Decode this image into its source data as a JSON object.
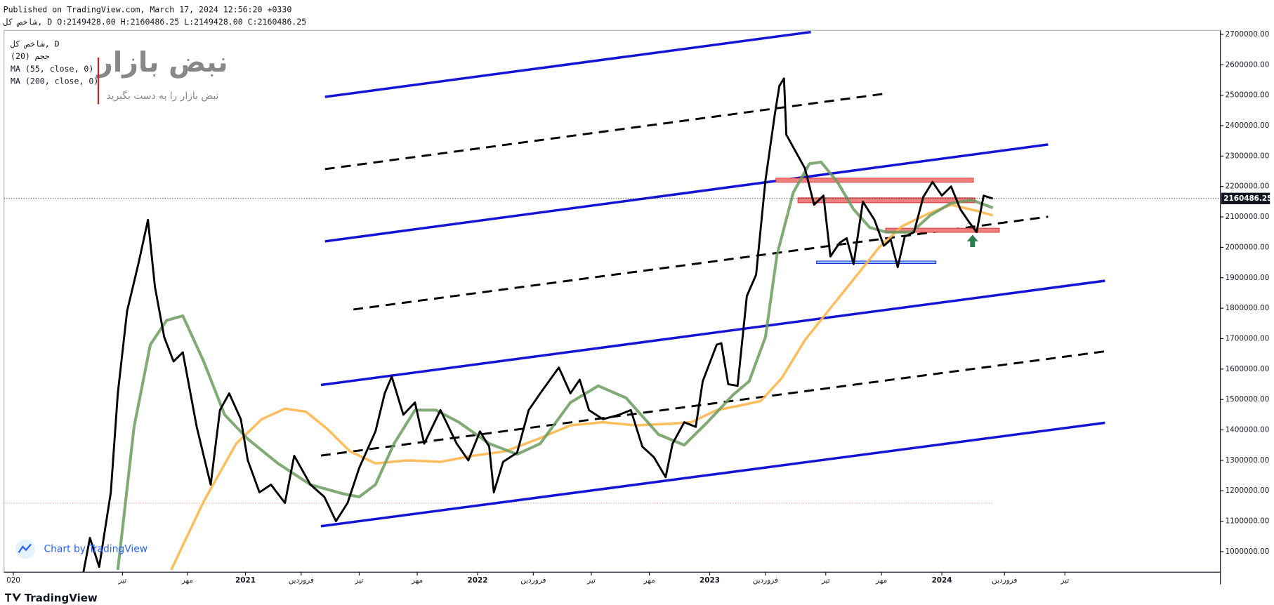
{
  "chart_data": {
    "type": "line",
    "published": "Published on TradingView.com, March 17, 2024 12:56:20 +0330",
    "ohlc_line": "شاخص کل, D O:2149428.00 H:2160486.25 L:2149428.00 C:2160486.25",
    "indicators": [
      "حجم (20)"
    ],
    "watermark": "نبض بازار",
    "watermark_slogan": "نبض بازار را به دست بگیرید",
    "credit": "Chart by TradingView",
    "brand": "TradingView",
    "last_price": {
      "value": 2160486.25,
      "label": "2160486.25"
    },
    "xlim": [
      2019.96,
      2025.2
    ],
    "ylim": [
      932500,
      2713000
    ],
    "xticks": [
      {
        "value": 2020.0,
        "label": "020"
      },
      {
        "value": 2020.47,
        "label": "تیر"
      },
      {
        "value": 2020.75,
        "label": "مهر"
      },
      2021,
      {
        "value": 2021.24,
        "label": "فروردین"
      },
      {
        "value": 2021.49,
        "label": "تیر"
      },
      {
        "value": 2021.74,
        "label": "مهر"
      },
      2022,
      {
        "value": 2022.24,
        "label": "فروردین"
      },
      {
        "value": 2022.49,
        "label": "تیر"
      },
      {
        "value": 2022.74,
        "label": "مهر"
      },
      2023,
      {
        "value": 2023.24,
        "label": "فروردین"
      },
      {
        "value": 2023.5,
        "label": "تیر"
      },
      {
        "value": 2023.74,
        "label": "مهر"
      },
      2024,
      {
        "value": 2024.27,
        "label": "فروردین"
      },
      {
        "value": 2024.53,
        "label": "تیر"
      }
    ],
    "yticks": [
      {
        "value": 1000000,
        "label": "1000000.00"
      },
      {
        "value": 1100000,
        "label": "1100000.00"
      },
      {
        "value": 1200000,
        "label": "1200000.00"
      },
      {
        "value": 1300000,
        "label": "1300000.00"
      },
      {
        "value": 1400000,
        "label": "1400000.00"
      },
      {
        "value": 1500000,
        "label": "1500000.00"
      },
      {
        "value": 1600000,
        "label": "1600000.00"
      },
      {
        "value": 1700000,
        "label": "1700000.00"
      },
      {
        "value": 1800000,
        "label": "1800000.00"
      },
      {
        "value": 1900000,
        "label": "1900000.00"
      },
      {
        "value": 2000000,
        "label": "2000000.00"
      },
      {
        "value": 2100000,
        "label": "2100000.00"
      },
      {
        "value": 2200000,
        "label": "2200000.00"
      },
      {
        "value": 2300000,
        "label": "2300000.00"
      },
      {
        "value": 2400000,
        "label": "2400000.00"
      },
      {
        "value": 2500000,
        "label": "2500000.00"
      },
      {
        "value": 2600000,
        "label": "2600000.00"
      },
      {
        "value": 2700000,
        "label": "2700000.00"
      }
    ],
    "series": [
      {
        "name": "شاخص کل, D",
        "color": "#000000",
        "x": [
          2020.3,
          2020.33,
          2020.37,
          2020.42,
          2020.45,
          2020.49,
          2020.54,
          2020.58,
          2020.61,
          2020.65,
          2020.69,
          2020.73,
          2020.79,
          2020.85,
          2020.89,
          2020.93,
          2020.98,
          2021.01,
          2021.06,
          2021.11,
          2021.17,
          2021.21,
          2021.28,
          2021.34,
          2021.39,
          2021.44,
          2021.49,
          2021.56,
          2021.6,
          2021.63,
          2021.68,
          2021.73,
          2021.77,
          2021.84,
          2021.91,
          2021.96,
          2022.01,
          2022.05,
          2022.07,
          2022.11,
          2022.17,
          2022.22,
          2022.27,
          2022.35,
          2022.4,
          2022.44,
          2022.48,
          2022.54,
          2022.61,
          2022.66,
          2022.71,
          2022.76,
          2022.81,
          2022.84,
          2022.89,
          2022.94,
          2022.97,
          2023.03,
          2023.05,
          2023.08,
          2023.12,
          2023.16,
          2023.2,
          2023.24,
          2023.28,
          2023.3,
          2023.32,
          2023.33,
          2023.37,
          2023.41,
          2023.45,
          2023.49,
          2023.52,
          2023.56,
          2023.59,
          2023.62,
          2023.66,
          2023.71,
          2023.75,
          2023.78,
          2023.81,
          2023.84,
          2023.88,
          2023.92,
          2023.96,
          2024.0,
          2024.04,
          2024.08,
          2024.12,
          2024.15,
          2024.18,
          2024.22
        ],
        "values": [
          925000,
          1045000,
          950000,
          1195000,
          1520000,
          1790000,
          1950000,
          2090000,
          1870000,
          1705000,
          1625000,
          1655000,
          1410000,
          1220000,
          1465000,
          1520000,
          1435000,
          1300000,
          1195000,
          1220000,
          1160000,
          1315000,
          1220000,
          1180000,
          1100000,
          1160000,
          1275000,
          1395000,
          1520000,
          1575000,
          1450000,
          1490000,
          1355000,
          1465000,
          1355000,
          1300000,
          1395000,
          1345000,
          1195000,
          1295000,
          1325000,
          1465000,
          1520000,
          1605000,
          1520000,
          1565000,
          1465000,
          1435000,
          1450000,
          1465000,
          1345000,
          1310000,
          1245000,
          1355000,
          1425000,
          1410000,
          1560000,
          1680000,
          1685000,
          1550000,
          1545000,
          1840000,
          1910000,
          2220000,
          2435000,
          2530000,
          2555000,
          2370000,
          2315000,
          2260000,
          2140000,
          2170000,
          1970000,
          2015000,
          2030000,
          1945000,
          2150000,
          2090000,
          2005000,
          2025000,
          1935000,
          2035000,
          2050000,
          2165000,
          2215000,
          2170000,
          2200000,
          2125000,
          2080000,
          2050000,
          2170000,
          2160000
        ]
      },
      {
        "name": "MA (55, close, 0)",
        "color": "#6b9b5e",
        "x": [
          2020.45,
          2020.52,
          2020.59,
          2020.66,
          2020.73,
          2020.82,
          2020.91,
          2021.01,
          2021.14,
          2021.28,
          2021.42,
          2021.49,
          2021.56,
          2021.64,
          2021.73,
          2021.82,
          2021.92,
          2022.05,
          2022.17,
          2022.27,
          2022.4,
          2022.52,
          2022.64,
          2022.78,
          2022.89,
          2022.99,
          2023.1,
          2023.17,
          2023.24,
          2023.29,
          2023.36,
          2023.43,
          2023.48,
          2023.55,
          2023.62,
          2023.69,
          2023.76,
          2023.87,
          2023.95,
          2024.04,
          2024.13,
          2024.22
        ],
        "values": [
          940000,
          1410000,
          1680000,
          1760000,
          1775000,
          1625000,
          1450000,
          1370000,
          1290000,
          1220000,
          1190000,
          1180000,
          1220000,
          1355000,
          1465000,
          1465000,
          1425000,
          1355000,
          1320000,
          1355000,
          1490000,
          1545000,
          1505000,
          1385000,
          1350000,
          1425000,
          1515000,
          1560000,
          1705000,
          1975000,
          2180000,
          2275000,
          2280000,
          2215000,
          2125000,
          2065000,
          2050000,
          2050000,
          2105000,
          2145000,
          2155000,
          2130000
        ]
      },
      {
        "name": "MA (200, close, 0)",
        "color": "#ffb74d",
        "x": [
          2020.68,
          2020.82,
          2020.96,
          2021.07,
          2021.17,
          2021.26,
          2021.35,
          2021.45,
          2021.56,
          2021.7,
          2021.84,
          2021.98,
          2022.12,
          2022.26,
          2022.4,
          2022.54,
          2022.68,
          2022.82,
          2022.92,
          2023.03,
          2023.13,
          2023.22,
          2023.31,
          2023.41,
          2023.52,
          2023.62,
          2023.73,
          2023.83,
          2023.94,
          2024.04,
          2024.15,
          2024.22
        ],
        "values": [
          940000,
          1165000,
          1355000,
          1435000,
          1470000,
          1460000,
          1405000,
          1330000,
          1290000,
          1300000,
          1295000,
          1315000,
          1330000,
          1370000,
          1415000,
          1425000,
          1415000,
          1420000,
          1425000,
          1465000,
          1480000,
          1495000,
          1570000,
          1695000,
          1800000,
          1895000,
          2000000,
          2070000,
          2110000,
          2140000,
          2120000,
          2105000
        ]
      }
    ]
  }
}
